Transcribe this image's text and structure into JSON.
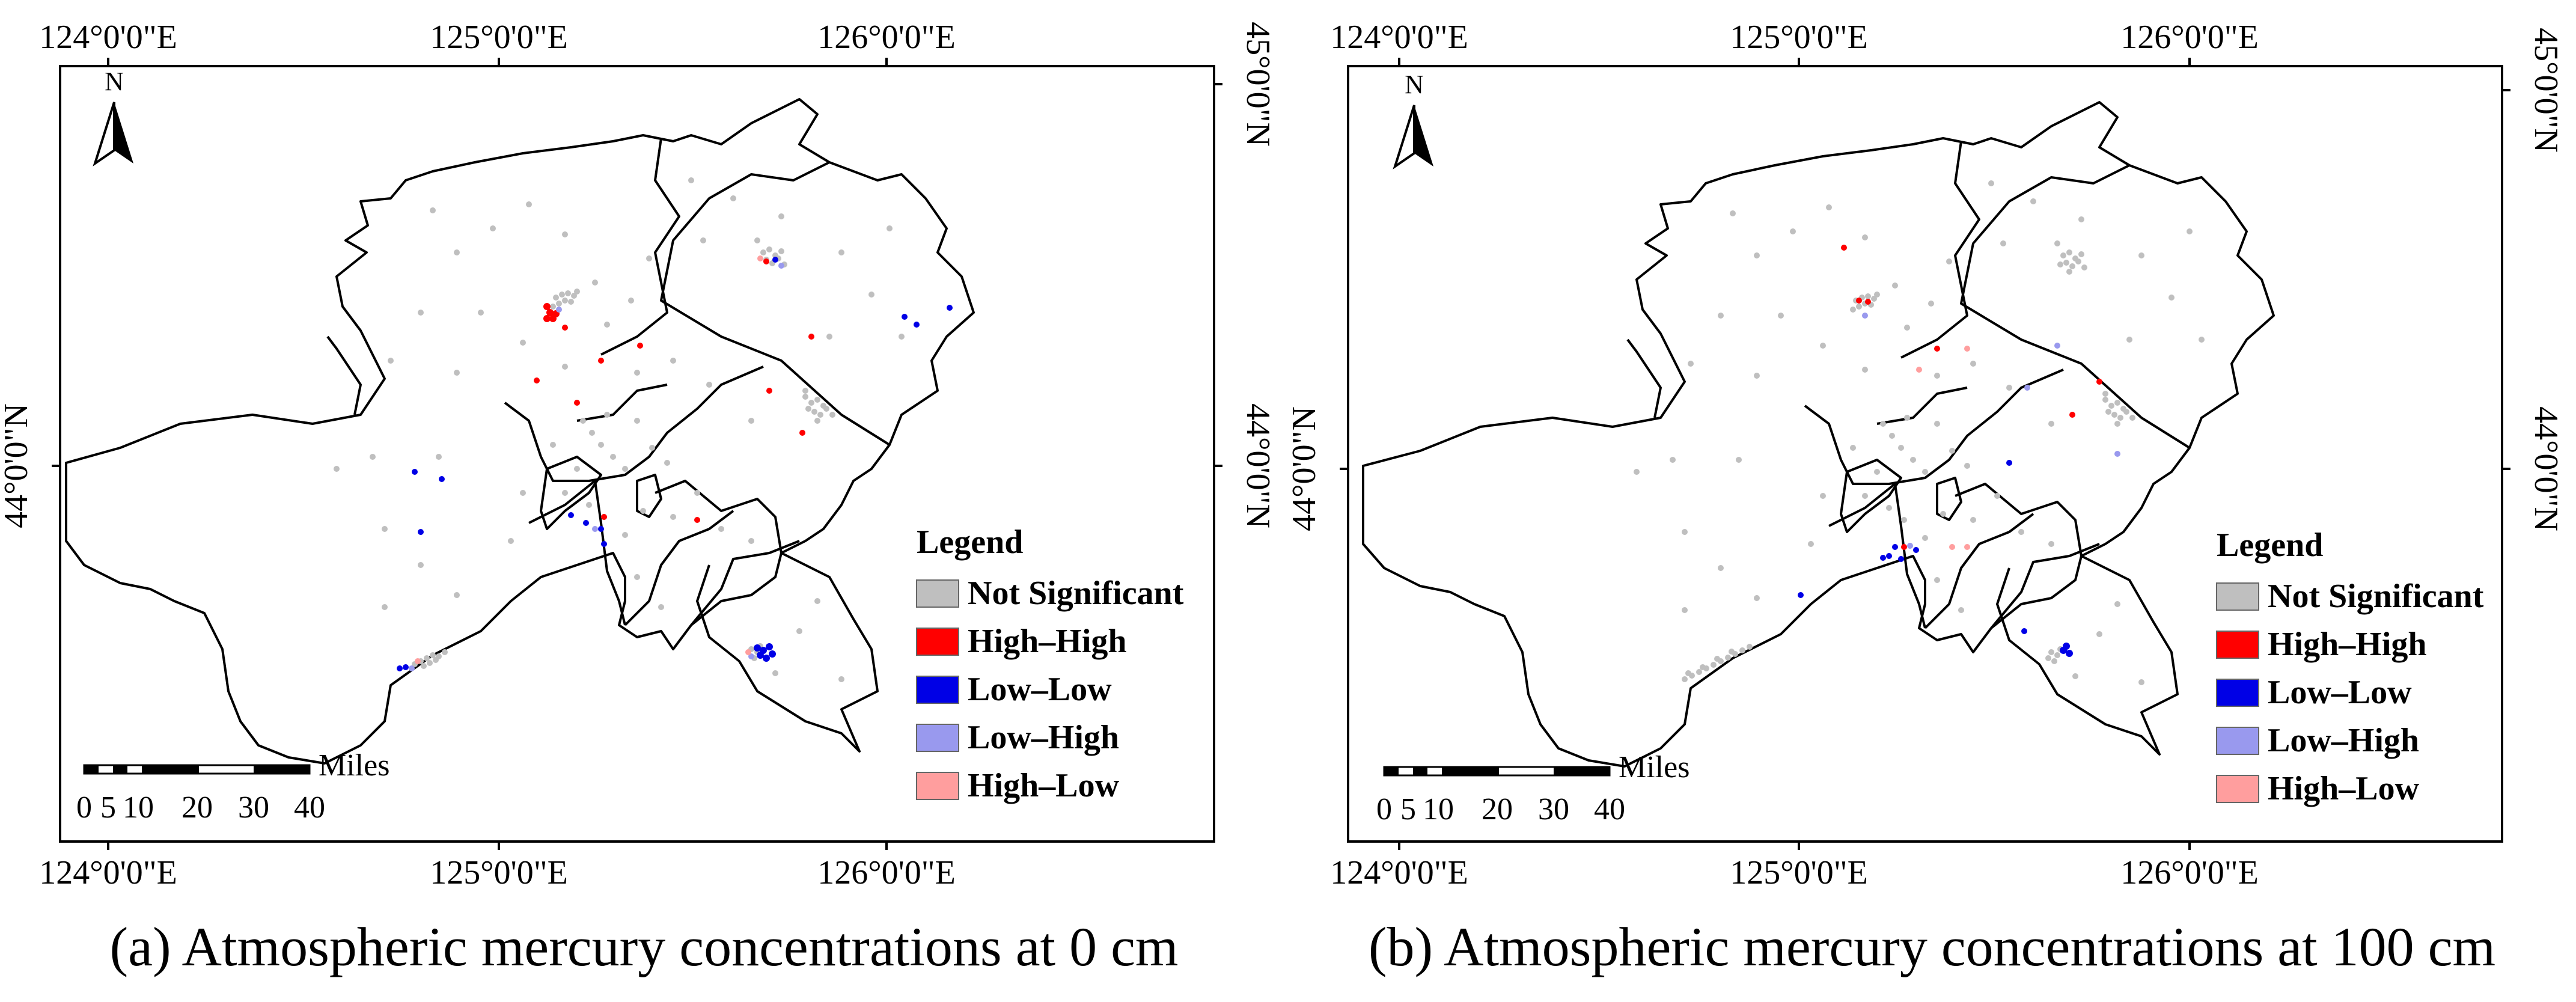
{
  "panels": [
    {
      "caption": "(a) Atmospheric mercury concentrations at 0 cm",
      "top_lon_labels": [
        "124°0'0\"E",
        "125°0'0\"E",
        "126°0'0\"E"
      ],
      "bottom_lon_labels": [
        "124°0'0\"E",
        "125°0'0\"E",
        "126°0'0\"E"
      ],
      "right_lat_labels": [
        "45°0'0\"N",
        "44°0'0\"N"
      ],
      "left_lat_labels": [
        "44°0'0\"N"
      ],
      "north_label": "N",
      "scale": {
        "unit": "Miles",
        "ticks": [
          "0",
          "5",
          "10",
          "20",
          "30",
          "40"
        ]
      },
      "legend": {
        "title": "Legend",
        "items": [
          {
            "label": "Not Significant",
            "color": "#bfbfbf"
          },
          {
            "label": "High–High",
            "color": "#ff0000"
          },
          {
            "label": "Low–Low",
            "color": "#0000e6"
          },
          {
            "label": "Low–High",
            "color": "#9999ee"
          },
          {
            "label": "High–Low",
            "color": "#ff9e9e"
          }
        ]
      }
    },
    {
      "caption": "(b) Atmospheric mercury concentrations at 100 cm",
      "top_lon_labels": [
        "124°0'0\"E",
        "125°0'0\"E",
        "126°0'0\"E"
      ],
      "bottom_lon_labels": [
        "124°0'0\"E",
        "125°0'0\"E",
        "126°0'0\"E"
      ],
      "right_lat_labels": [
        "45°0'0\"N",
        "44°0'0\"N"
      ],
      "left_lat_labels": [
        "44°0'0\"N"
      ],
      "north_label": "N",
      "scale": {
        "unit": "Miles",
        "ticks": [
          "0",
          "5",
          "10",
          "20",
          "30",
          "40"
        ]
      },
      "legend": {
        "title": "Legend",
        "items": [
          {
            "label": "Not Significant",
            "color": "#bfbfbf"
          },
          {
            "label": "High–High",
            "color": "#ff0000"
          },
          {
            "label": "Low–Low",
            "color": "#0000e6"
          },
          {
            "label": "Low–High",
            "color": "#9999ee"
          },
          {
            "label": "High–Low",
            "color": "#ff9e9e"
          }
        ]
      }
    }
  ]
}
